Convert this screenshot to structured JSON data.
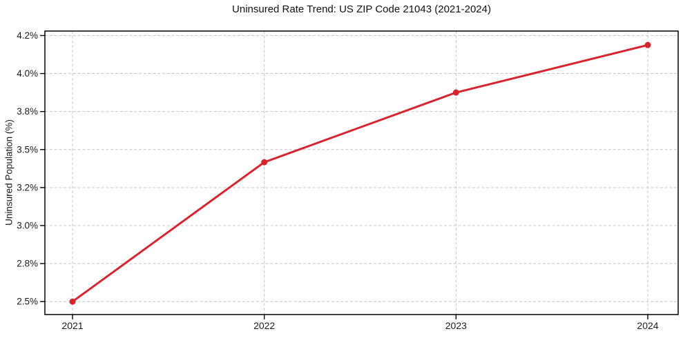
{
  "chart_data": {
    "type": "line",
    "title": "Uninsured Rate Trend: US ZIP Code 21043 (2021-2024)",
    "xlabel": "",
    "ylabel": "Uninsured Population (%)",
    "x": [
      "2021",
      "2022",
      "2023",
      "2024"
    ],
    "series": [
      {
        "name": "Uninsured Rate",
        "values": [
          2.5,
          3.4,
          3.9,
          4.15
        ]
      }
    ],
    "y_ticks": [
      2.5,
      2.8,
      3.0,
      3.2,
      3.5,
      3.8,
      4.0,
      4.2
    ],
    "y_tick_labels": [
      "2.5%",
      "2.8%",
      "3.0%",
      "3.2%",
      "3.5%",
      "3.8%",
      "4.0%",
      "4.2%"
    ],
    "y_tick_spacing": "even",
    "ylim_note": "ticks evenly spaced in pixels despite uneven value increments",
    "legend": "none",
    "grid": "dashed",
    "marker": "circle",
    "colors": {
      "line": "#d6252f",
      "marker": "#d6252f",
      "grid": "#c9c9c9",
      "spine": "#000000",
      "text": "#1a1a1a",
      "background": "#ffffff"
    }
  }
}
